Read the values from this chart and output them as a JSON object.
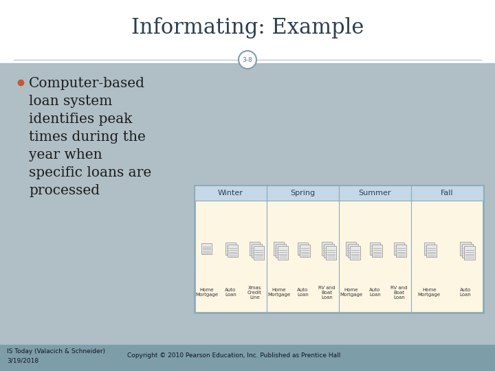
{
  "title": "Informating: Example",
  "slide_number": "3-8",
  "bullet_lines": [
    "Computer-based",
    "loan system",
    "identifies peak",
    "times during the",
    "year when",
    "specific loans are",
    "processed"
  ],
  "bullet_color": "#cc5533",
  "title_color": "#2c3e50",
  "background_color": "#b0bec5",
  "header_bg": "#ffffff",
  "footer_bg": "#7d9ea8",
  "footer_text1": "IS Today (Valacich & Schneider)",
  "footer_text2": "Copyright © 2010 Pearson Education, Inc. Published as Prentice Hall",
  "footer_date": "3/19/2018",
  "table_header_bg": "#c5d8e8",
  "table_body_bg": "#fdf6e3",
  "table_border": "#8aabb8",
  "badge_color": "#7d9ea8",
  "seasons": [
    "Winter",
    "Spring",
    "Summer",
    "Fall"
  ],
  "season_loans": {
    "Winter": [
      "Home\nMortgage",
      "Auto\nLoan",
      "Xmas\nCredit\nLine"
    ],
    "Spring": [
      "Home\nMortgage",
      "Auto\nLoan",
      "RV and\nBoat\nLoan"
    ],
    "Summer": [
      "Home\nMortgage",
      "Auto\nLoan",
      "RV and\nBoat\nLoan"
    ],
    "Fall": [
      "Home\nMortgage",
      "Auto\nLoan"
    ]
  },
  "season_icon_counts": {
    "Winter": [
      1,
      2,
      3
    ],
    "Spring": [
      3,
      2,
      3
    ],
    "Summer": [
      3,
      2,
      2
    ],
    "Fall": [
      2,
      3
    ]
  }
}
